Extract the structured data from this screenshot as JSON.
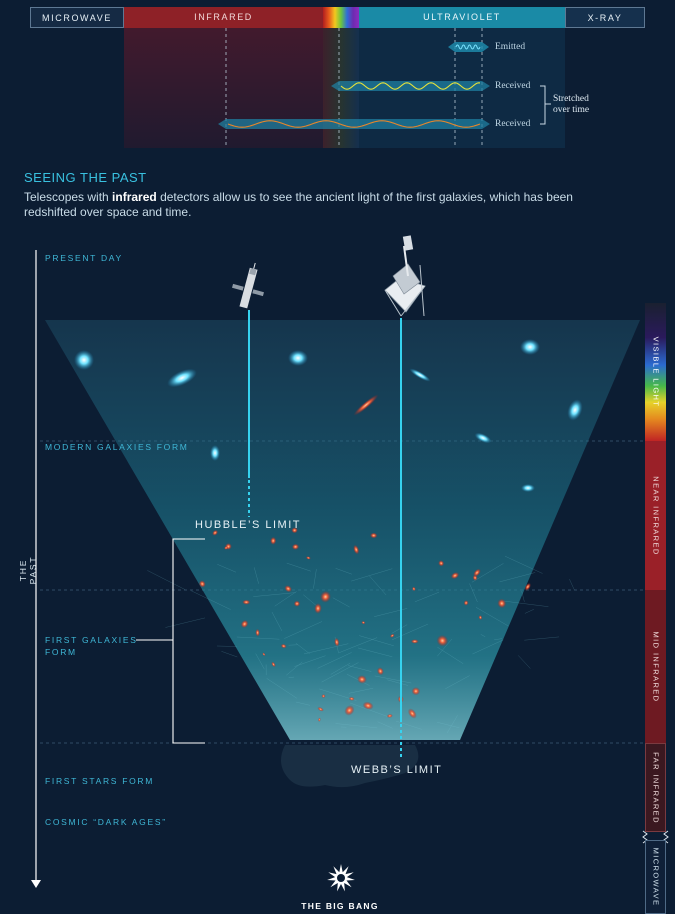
{
  "spectrum": {
    "microwave": "MICROWAVE",
    "infrared": "INFRARED",
    "ultraviolet": "ULTRAVIOLET",
    "xray": "X-RAY"
  },
  "waves": {
    "emitted": "Emitted",
    "received_1": "Received",
    "received_2": "Received",
    "stretched_line1": "Stretched",
    "stretched_line2": "over time"
  },
  "heading": "SEEING THE PAST",
  "intro": {
    "part1": "Telescopes with ",
    "bold": "infrared",
    "part2": " detectors allow us to see the ancient light of the first galaxies, which has been redshifted over space and time."
  },
  "timeline": {
    "present_day": "PRESENT DAY",
    "modern_galaxies": "MODERN GALAXIES FORM",
    "first_galaxies_1": "FIRST GALAXIES",
    "first_galaxies_2": "FORM",
    "first_stars": "FIRST STARS FORM",
    "dark_ages": "COSMIC “DARK AGES”",
    "axis_label": "THE PAST"
  },
  "limits": {
    "hubble": "HUBBLE’S LIMIT",
    "webb": "WEBB’S LIMIT"
  },
  "big_bang": "THE BIG BANG",
  "right_spectrum": {
    "visible": "VISIBLE LIGHT",
    "near_ir": "NEAR INFRARED",
    "mid_ir": "MID INFRARED",
    "far_ir": "FAR INFRARED",
    "microwave": "MICROWAVE"
  },
  "colors": {
    "accent": "#3fb7d6",
    "infrared": "#8e2127",
    "ultraviolet": "#1a8aa6",
    "background": "#0c1d33"
  }
}
